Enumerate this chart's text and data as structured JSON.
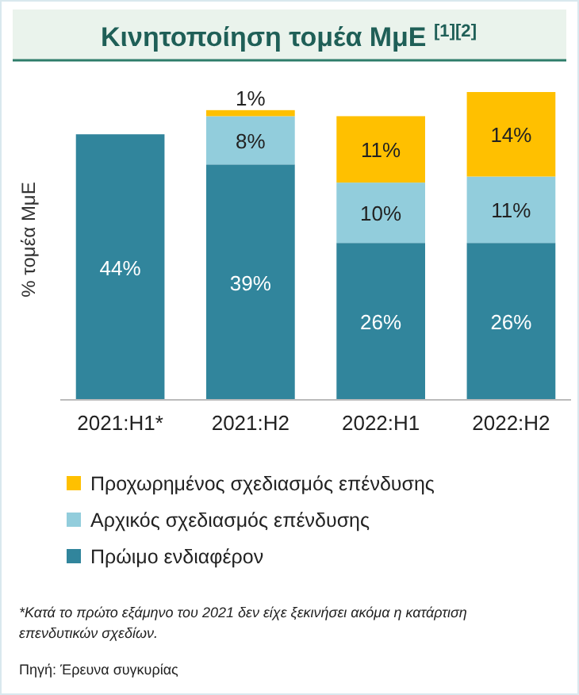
{
  "chart_data": {
    "type": "bar",
    "title": "Κινητοποίηση τομέα ΜμΕ $^{[1][2]}$",
    "ylabel": "% τομέα ΜμΕ",
    "categories": [
      "2021:H1*",
      "2021:H2",
      "2022:H1",
      "2022:H2"
    ],
    "stacked": true,
    "legend": "bottom",
    "series": [
      {
        "name": "Πρώιμο ενδιαφέρον",
        "color": "#31859c",
        "values": [
          44,
          39,
          26,
          26
        ],
        "value_labels": [
          "44%",
          "39%",
          "26%",
          "26%"
        ]
      },
      {
        "name": "Αρχικός σχεδιασμός επένδυσης",
        "color": "#92cddc",
        "values": [
          null,
          8,
          10,
          11
        ],
        "value_labels": [
          null,
          "8%",
          "10%",
          "11%"
        ]
      },
      {
        "name": "Προχωρημένος σχεδιασμός επένδυσης",
        "color": "#ffc000",
        "values": [
          null,
          1,
          11,
          14
        ],
        "value_labels": [
          null,
          "1%",
          "11%",
          "14%"
        ]
      }
    ],
    "annotations": [
      "*Κατά το πρώτο εξάμηνο του 2021 δεν είχε ξεκινήσει ακόμα η κατάρτιση επενδυτικών σχεδίων.",
      "Πηγή: Έρευνα συγκυρίας"
    ]
  }
}
